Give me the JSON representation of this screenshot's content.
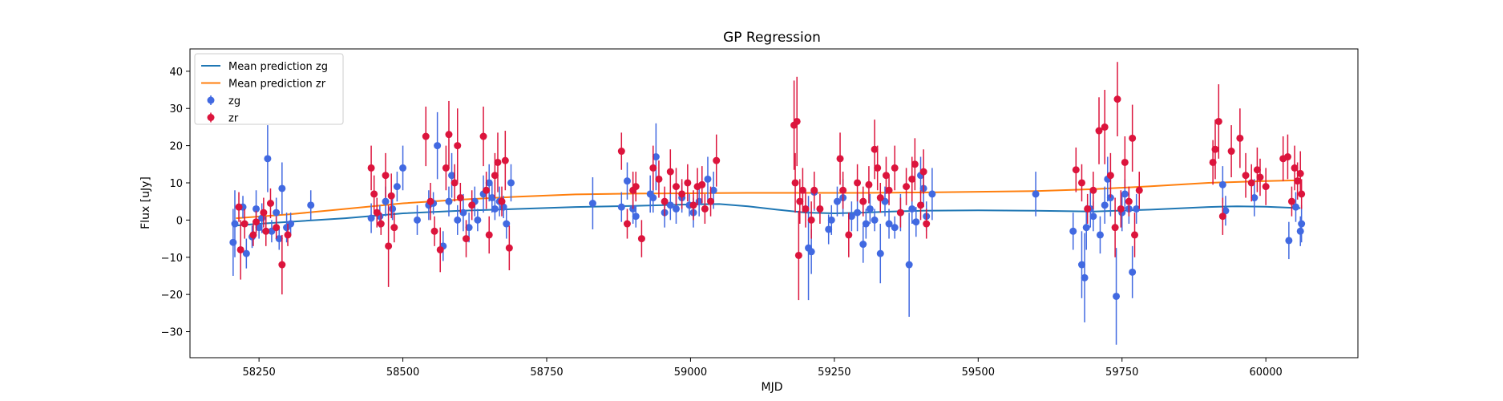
{
  "chart_data": {
    "type": "scatter",
    "title": "GP Regression",
    "xlabel": "MJD",
    "ylabel": "Flux [uJy]",
    "xlim": [
      58130,
      60160
    ],
    "ylim": [
      -37,
      46
    ],
    "xticks": [
      58250,
      58500,
      58750,
      59000,
      59250,
      59500,
      59750,
      60000
    ],
    "yticks": [
      -30,
      -20,
      -10,
      0,
      10,
      20,
      30,
      40
    ],
    "grid": false,
    "legend_position": "top-left",
    "colors": {
      "zg": "#4169e1",
      "zr": "#dc143c",
      "mean_zg": "#1f77b4",
      "mean_zr": "#ff7f0e"
    },
    "legend": [
      {
        "label": "Mean prediction zg",
        "kind": "line",
        "color": "#1f77b4"
      },
      {
        "label": "Mean prediction zr",
        "kind": "line",
        "color": "#ff7f0e"
      },
      {
        "label": "zg",
        "kind": "errorbar",
        "color": "#4169e1"
      },
      {
        "label": "zr",
        "kind": "errorbar",
        "color": "#dc143c"
      }
    ],
    "lines": [
      {
        "name": "Mean prediction zg",
        "color": "#1f77b4",
        "x": [
          58210,
          58250,
          58300,
          58400,
          58500,
          58600,
          58700,
          58800,
          58900,
          59000,
          59050,
          59100,
          59150,
          59200,
          59250,
          59300,
          59350,
          59400,
          59500,
          59600,
          59700,
          59800,
          59900,
          59950,
          60000,
          60060
        ],
        "y": [
          -1.5,
          -1.0,
          -0.5,
          0.5,
          1.8,
          2.5,
          3.0,
          3.5,
          3.8,
          4.2,
          4.3,
          3.7,
          2.8,
          2.0,
          1.8,
          2.0,
          2.3,
          2.5,
          2.6,
          2.5,
          2.3,
          2.8,
          3.5,
          3.7,
          3.6,
          3.2
        ]
      },
      {
        "name": "Mean prediction zr",
        "color": "#ff7f0e",
        "x": [
          58210,
          58300,
          58400,
          58500,
          58600,
          58700,
          58800,
          58900,
          59000,
          59100,
          59200,
          59300,
          59400,
          59500,
          59600,
          59700,
          59800,
          59900,
          60000,
          60060
        ],
        "y": [
          0.5,
          1.5,
          3.0,
          4.5,
          5.5,
          6.3,
          6.9,
          7.1,
          7.2,
          7.3,
          7.3,
          7.3,
          7.4,
          7.6,
          7.8,
          8.3,
          9.1,
          10.0,
          10.5,
          10.7
        ]
      }
    ],
    "series": [
      {
        "name": "zg",
        "color": "#4169e1",
        "points": [
          [
            58205,
            -6,
            9
          ],
          [
            58208,
            -1,
            9
          ],
          [
            58222,
            3.5,
            3
          ],
          [
            58228,
            -9,
            4
          ],
          [
            58238,
            -4.5,
            3
          ],
          [
            58245,
            3,
            5
          ],
          [
            58250,
            -2,
            3
          ],
          [
            58255,
            0.5,
            4
          ],
          [
            58265,
            16.5,
            9
          ],
          [
            58272,
            -3,
            3
          ],
          [
            58280,
            2,
            4
          ],
          [
            58285,
            -5,
            3
          ],
          [
            58290,
            8.5,
            7
          ],
          [
            58298,
            -2,
            4
          ],
          [
            58305,
            -1,
            3
          ],
          [
            58340,
            4,
            4
          ],
          [
            58445,
            0.5,
            4
          ],
          [
            58460,
            1,
            3
          ],
          [
            58470,
            5,
            4
          ],
          [
            58482,
            3,
            3
          ],
          [
            58490,
            9,
            4
          ],
          [
            58500,
            14,
            6
          ],
          [
            58525,
            0,
            4
          ],
          [
            58545,
            4,
            4
          ],
          [
            58553,
            4.5,
            3
          ],
          [
            58560,
            20,
            9
          ],
          [
            58570,
            -7,
            4
          ],
          [
            58580,
            5,
            4
          ],
          [
            58585,
            12,
            6
          ],
          [
            58595,
            0,
            4
          ],
          [
            58605,
            2,
            5
          ],
          [
            58615,
            -2,
            4
          ],
          [
            58625,
            5,
            4
          ],
          [
            58630,
            0,
            3
          ],
          [
            58640,
            7,
            5
          ],
          [
            58650,
            10,
            5
          ],
          [
            58655,
            6,
            4
          ],
          [
            58660,
            3,
            3
          ],
          [
            58668,
            5,
            4
          ],
          [
            58675,
            3.5,
            3
          ],
          [
            58680,
            -1,
            4
          ],
          [
            58688,
            10,
            5
          ],
          [
            58830,
            4.5,
            7
          ],
          [
            58880,
            3.5,
            4
          ],
          [
            58890,
            10.5,
            5
          ],
          [
            58900,
            3,
            4
          ],
          [
            58905,
            1,
            3
          ],
          [
            58930,
            7,
            5
          ],
          [
            58935,
            6,
            4
          ],
          [
            58940,
            17,
            9
          ],
          [
            58955,
            2,
            4
          ],
          [
            58965,
            4,
            4
          ],
          [
            58975,
            3,
            4
          ],
          [
            58985,
            6,
            4
          ],
          [
            58998,
            4,
            3
          ],
          [
            59005,
            2,
            4
          ],
          [
            59015,
            5,
            4
          ],
          [
            59030,
            11,
            6
          ],
          [
            59040,
            8,
            5
          ],
          [
            59205,
            -7.5,
            14
          ],
          [
            59210,
            -8.5,
            6
          ],
          [
            59215,
            7.5,
            5
          ],
          [
            59240,
            -2.5,
            4
          ],
          [
            59245,
            0,
            4
          ],
          [
            59255,
            5,
            4
          ],
          [
            59265,
            6,
            5
          ],
          [
            59280,
            1,
            4
          ],
          [
            59290,
            2,
            5
          ],
          [
            59300,
            -6.5,
            5
          ],
          [
            59305,
            -1,
            4
          ],
          [
            59312,
            3,
            4
          ],
          [
            59320,
            0,
            3
          ],
          [
            59330,
            -9,
            8
          ],
          [
            59338,
            5,
            4
          ],
          [
            59345,
            -1,
            4
          ],
          [
            59355,
            -2,
            3
          ],
          [
            59365,
            2,
            5
          ],
          [
            59380,
            -12,
            14
          ],
          [
            59385,
            3,
            4
          ],
          [
            59392,
            -0.5,
            4
          ],
          [
            59400,
            12,
            5
          ],
          [
            59405,
            8.5,
            5
          ],
          [
            59410,
            1,
            4
          ],
          [
            59420,
            7,
            7
          ],
          [
            59600,
            7,
            6
          ],
          [
            59665,
            -3,
            5
          ],
          [
            59680,
            -12,
            9
          ],
          [
            59685,
            -15.5,
            12
          ],
          [
            59688,
            -2,
            6
          ],
          [
            59695,
            3,
            5
          ],
          [
            59700,
            1,
            4
          ],
          [
            59712,
            -4,
            5
          ],
          [
            59720,
            4,
            5
          ],
          [
            59725,
            11,
            6
          ],
          [
            59730,
            6,
            5
          ],
          [
            59740,
            -20.5,
            13
          ],
          [
            59750,
            2,
            5
          ],
          [
            59755,
            7,
            4
          ],
          [
            59762,
            3,
            4
          ],
          [
            59768,
            -14,
            7
          ],
          [
            59775,
            3,
            4
          ],
          [
            59925,
            9.5,
            5
          ],
          [
            59930,
            2.5,
            4
          ],
          [
            59980,
            6,
            5
          ],
          [
            60040,
            -5.5,
            5
          ],
          [
            60052,
            3.5,
            4
          ],
          [
            60060,
            -3,
            4
          ],
          [
            60062,
            -1,
            5
          ]
        ]
      },
      {
        "name": "zr",
        "color": "#dc143c",
        "points": [
          [
            58215,
            3.5,
            4
          ],
          [
            58218,
            -8,
            8
          ],
          [
            58225,
            -1,
            4
          ],
          [
            58240,
            -4,
            3
          ],
          [
            58245,
            -0.5,
            3
          ],
          [
            58258,
            2,
            4
          ],
          [
            58262,
            -3,
            4
          ],
          [
            58270,
            4.5,
            4
          ],
          [
            58280,
            -2,
            3
          ],
          [
            58290,
            -12,
            8
          ],
          [
            58300,
            -4,
            3
          ],
          [
            58445,
            14,
            6
          ],
          [
            58450,
            7,
            5
          ],
          [
            58455,
            2,
            4
          ],
          [
            58462,
            -1,
            3
          ],
          [
            58470,
            12,
            6
          ],
          [
            58475,
            -7,
            11
          ],
          [
            58480,
            6.5,
            6
          ],
          [
            58485,
            -2,
            4
          ],
          [
            58540,
            22.5,
            8
          ],
          [
            58548,
            5,
            5
          ],
          [
            58555,
            -3,
            4
          ],
          [
            58565,
            -8,
            6
          ],
          [
            58575,
            14,
            6
          ],
          [
            58580,
            23,
            9
          ],
          [
            58590,
            10,
            5
          ],
          [
            58595,
            20,
            10
          ],
          [
            58600,
            6,
            4
          ],
          [
            58610,
            -5,
            5
          ],
          [
            58620,
            4,
            4
          ],
          [
            58640,
            22.5,
            8
          ],
          [
            58645,
            8,
            5
          ],
          [
            58650,
            -4,
            5
          ],
          [
            58660,
            12,
            6
          ],
          [
            58665,
            15.5,
            8
          ],
          [
            58672,
            5,
            4
          ],
          [
            58678,
            16,
            8
          ],
          [
            58685,
            -7.5,
            6
          ],
          [
            58880,
            18.5,
            5
          ],
          [
            58890,
            -1,
            4
          ],
          [
            58900,
            8,
            5
          ],
          [
            58905,
            9,
            4
          ],
          [
            58915,
            -5,
            5
          ],
          [
            58935,
            14,
            6
          ],
          [
            58945,
            11,
            5
          ],
          [
            58955,
            5,
            4
          ],
          [
            58965,
            13,
            6
          ],
          [
            58975,
            9,
            5
          ],
          [
            58985,
            7,
            4
          ],
          [
            58995,
            10,
            5
          ],
          [
            59005,
            4,
            4
          ],
          [
            59012,
            9,
            5
          ],
          [
            59020,
            9.5,
            5
          ],
          [
            59025,
            3,
            4
          ],
          [
            59035,
            5,
            4
          ],
          [
            59045,
            16,
            7
          ],
          [
            59180,
            25.5,
            12
          ],
          [
            59182,
            10,
            8
          ],
          [
            59185,
            26.5,
            12
          ],
          [
            59188,
            -9.5,
            12
          ],
          [
            59190,
            5,
            6
          ],
          [
            59195,
            8,
            6
          ],
          [
            59200,
            3,
            5
          ],
          [
            59210,
            0,
            5
          ],
          [
            59215,
            8,
            5
          ],
          [
            59225,
            3,
            4
          ],
          [
            59260,
            16.5,
            7
          ],
          [
            59265,
            8,
            5
          ],
          [
            59275,
            -4,
            6
          ],
          [
            59290,
            10,
            5
          ],
          [
            59300,
            5,
            4
          ],
          [
            59310,
            9.5,
            5
          ],
          [
            59320,
            19,
            8
          ],
          [
            59325,
            14,
            6
          ],
          [
            59330,
            6,
            4
          ],
          [
            59340,
            12,
            5
          ],
          [
            59345,
            8,
            4
          ],
          [
            59355,
            14,
            6
          ],
          [
            59365,
            2,
            4
          ],
          [
            59375,
            9,
            5
          ],
          [
            59385,
            11,
            6
          ],
          [
            59390,
            15,
            7
          ],
          [
            59400,
            4,
            4
          ],
          [
            59405,
            13,
            6
          ],
          [
            59410,
            -1,
            4
          ],
          [
            59670,
            13.5,
            6
          ],
          [
            59680,
            10,
            5
          ],
          [
            59690,
            3,
            4
          ],
          [
            59700,
            8,
            5
          ],
          [
            59710,
            24,
            9
          ],
          [
            59720,
            25,
            10
          ],
          [
            59730,
            12,
            6
          ],
          [
            59738,
            -2,
            8
          ],
          [
            59742,
            32.5,
            10
          ],
          [
            59748,
            3,
            5
          ],
          [
            59755,
            15.5,
            7
          ],
          [
            59762,
            5,
            4
          ],
          [
            59768,
            22,
            9
          ],
          [
            59772,
            -4,
            6
          ],
          [
            59780,
            8,
            5
          ],
          [
            59908,
            15.5,
            6
          ],
          [
            59912,
            19,
            8
          ],
          [
            59918,
            26.5,
            10
          ],
          [
            59925,
            1,
            5
          ],
          [
            59940,
            18.5,
            7
          ],
          [
            59955,
            22,
            8
          ],
          [
            59965,
            12,
            6
          ],
          [
            59975,
            10,
            5
          ],
          [
            59985,
            13.5,
            6
          ],
          [
            59990,
            11.5,
            5
          ],
          [
            60000,
            9,
            5
          ],
          [
            60030,
            16.5,
            6
          ],
          [
            60038,
            17,
            6
          ],
          [
            60045,
            5,
            4
          ],
          [
            60050,
            14,
            6
          ],
          [
            60055,
            10.5,
            5
          ],
          [
            60060,
            12.5,
            6
          ],
          [
            60062,
            7,
            4
          ]
        ]
      }
    ]
  }
}
